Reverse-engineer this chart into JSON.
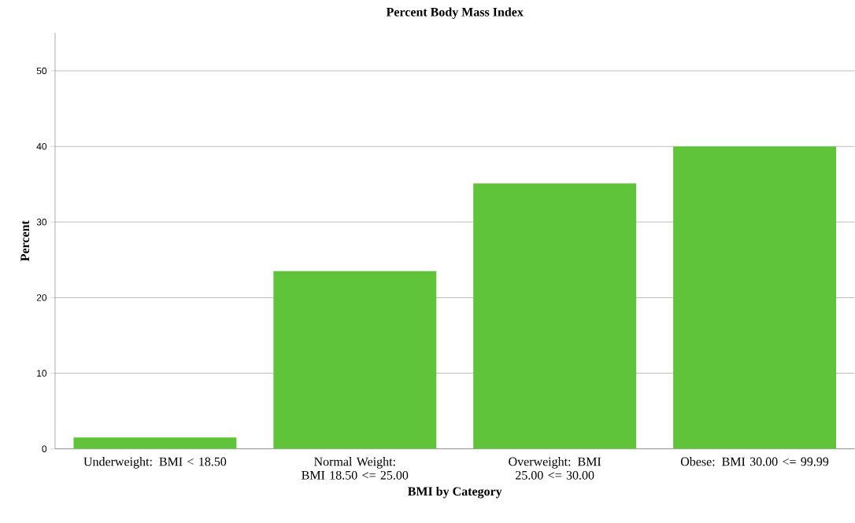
{
  "chart_data": {
    "type": "bar",
    "title": "Percent Body Mass Index",
    "xlabel": "BMI by Category",
    "ylabel": "Percent",
    "categories": [
      "Underweight: BMI < 18.50",
      "Normal Weight: BMI 18.50 <= 25.00",
      "Overweight: BMI 25.00 <= 30.00",
      "Obese: BMI 30.00 <= 99.99"
    ],
    "values": [
      1.5,
      23.5,
      35.1,
      40.0
    ],
    "color": "#5fc43a",
    "ylim": [
      0,
      55
    ],
    "yticks": [
      0,
      10,
      20,
      30,
      40,
      50
    ],
    "grid": "y"
  }
}
